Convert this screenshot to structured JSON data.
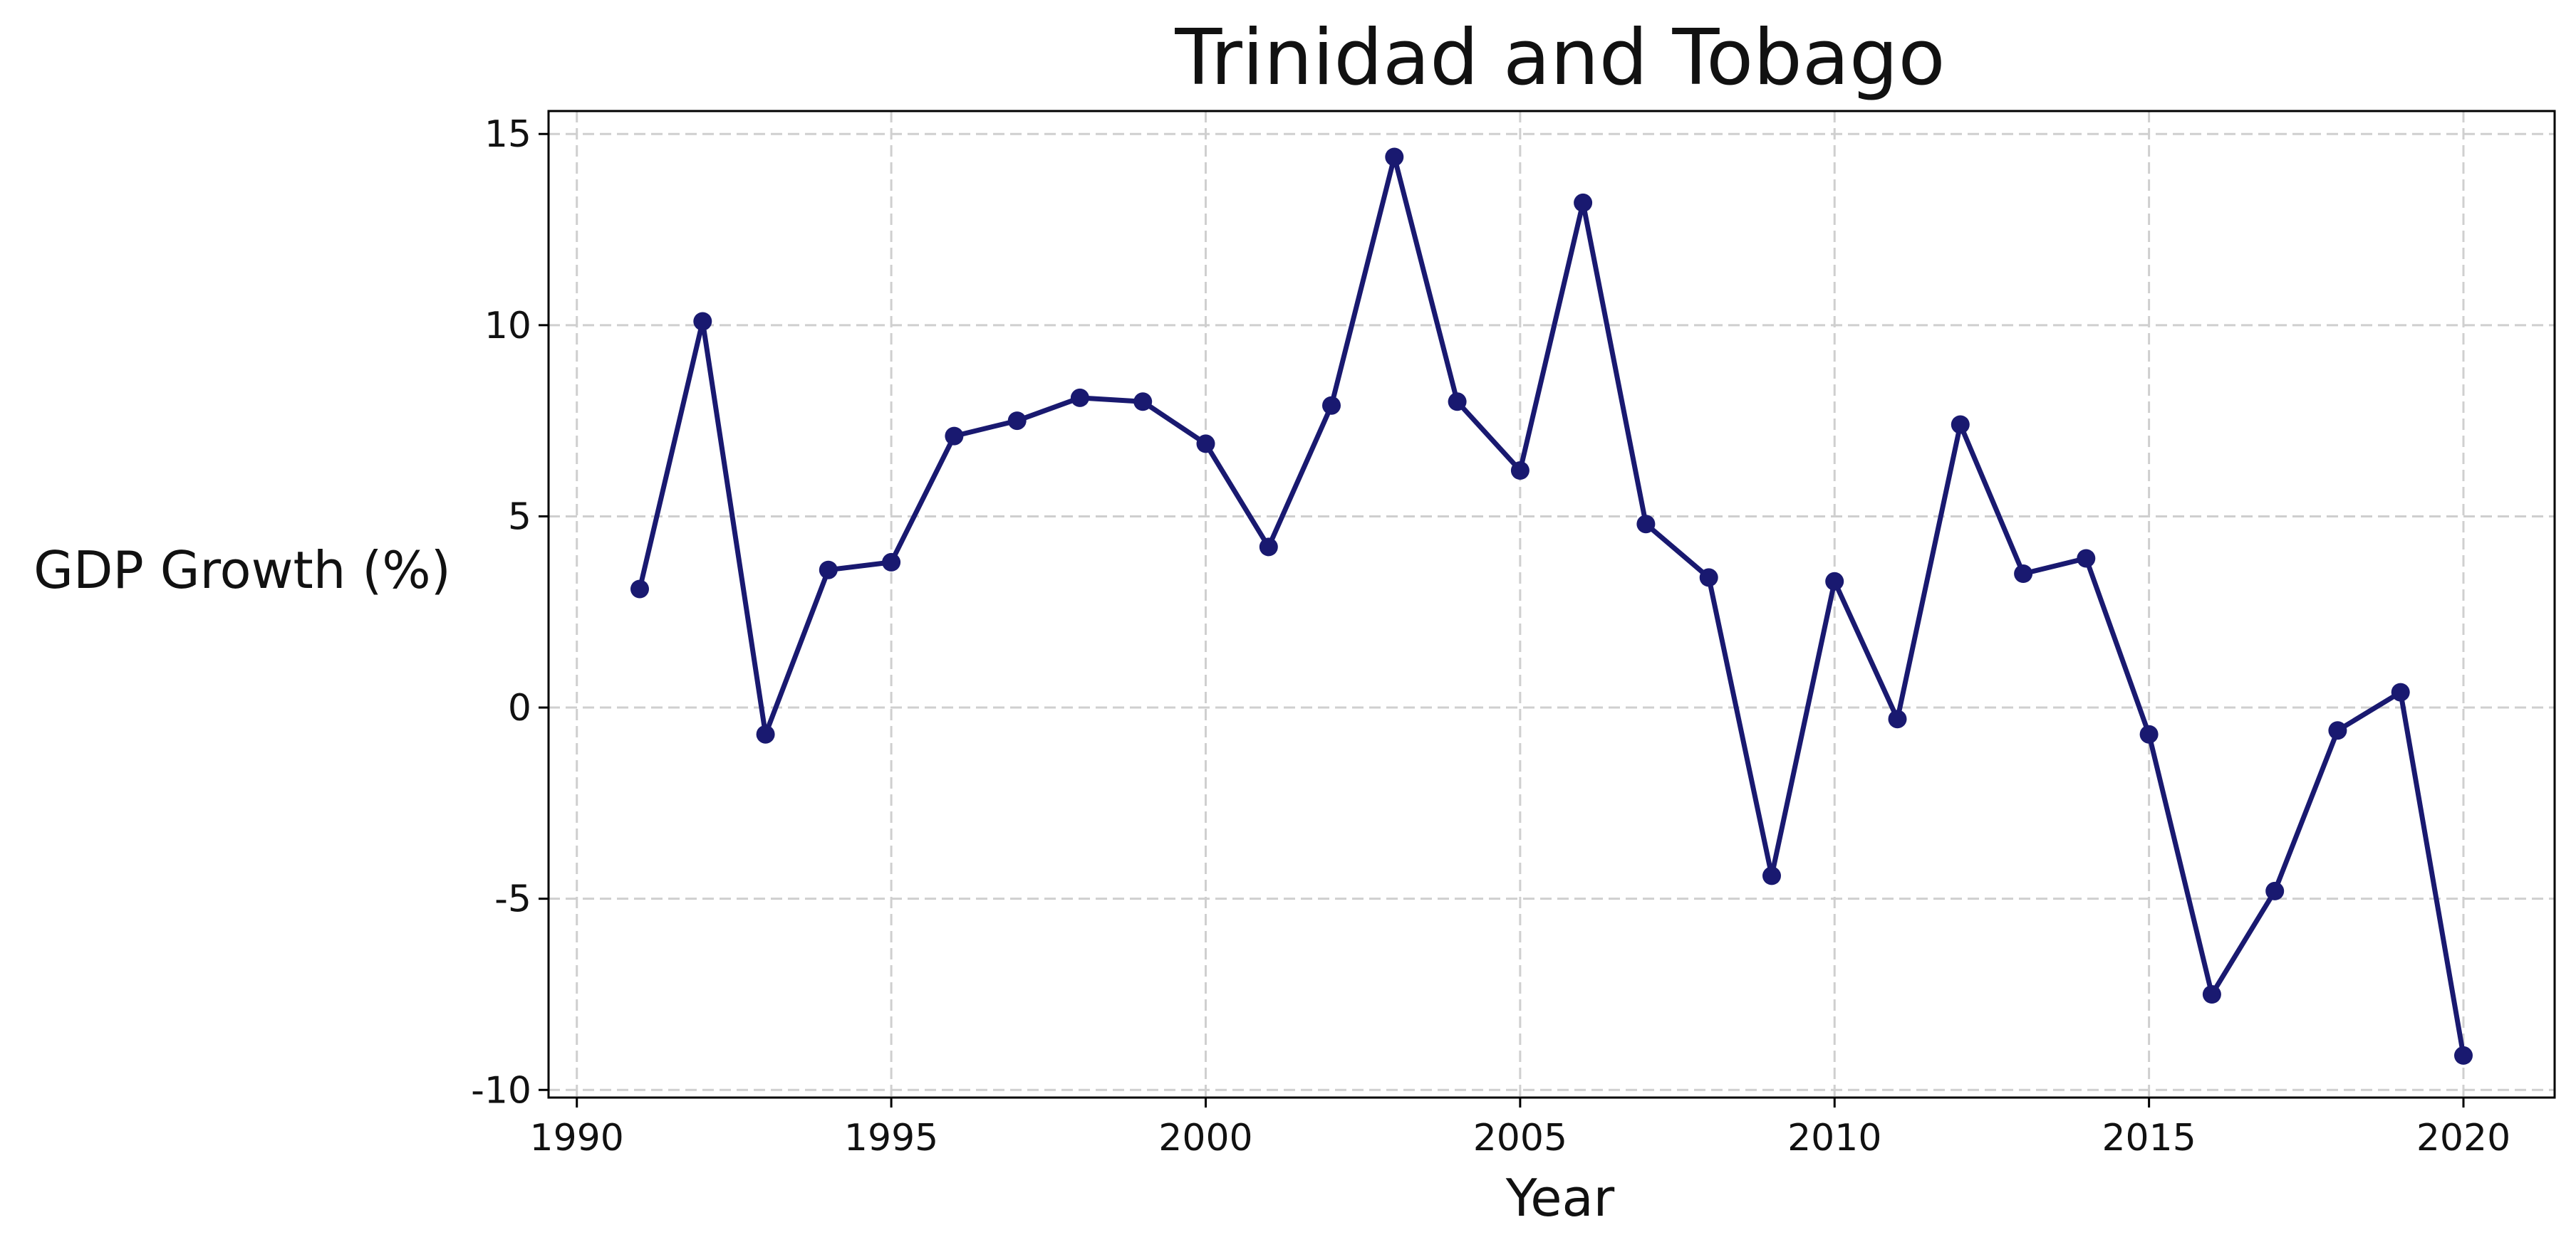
{
  "chart_data": {
    "type": "line",
    "title": "Trinidad and Tobago",
    "xlabel": "Year",
    "ylabel": "GDP Growth (%)",
    "x": [
      1991,
      1992,
      1993,
      1994,
      1995,
      1996,
      1997,
      1998,
      1999,
      2000,
      2001,
      2002,
      2003,
      2004,
      2005,
      2006,
      2007,
      2008,
      2009,
      2010,
      2011,
      2012,
      2013,
      2014,
      2015,
      2016,
      2017,
      2018,
      2019,
      2020
    ],
    "series": [
      {
        "values": [
          3.1,
          10.1,
          -0.7,
          3.6,
          3.8,
          7.1,
          7.5,
          8.1,
          8.0,
          6.9,
          4.2,
          7.9,
          14.4,
          8.0,
          6.2,
          13.2,
          4.8,
          3.4,
          -4.4,
          3.3,
          -0.3,
          7.4,
          3.5,
          3.9,
          -0.7,
          -7.5,
          -4.8,
          -0.6,
          0.4,
          -9.1
        ],
        "color": "#191970"
      }
    ],
    "xticks": [
      "1990",
      "1995",
      "2000",
      "2005",
      "2010",
      "2015",
      "2020"
    ],
    "yticks": [
      "-10",
      "-5",
      "0",
      "5",
      "10",
      "15"
    ],
    "xlim": [
      1989.55,
      2021.45
    ],
    "ylim": [
      -10.2,
      15.6
    ],
    "grid": true,
    "legend": "none"
  }
}
